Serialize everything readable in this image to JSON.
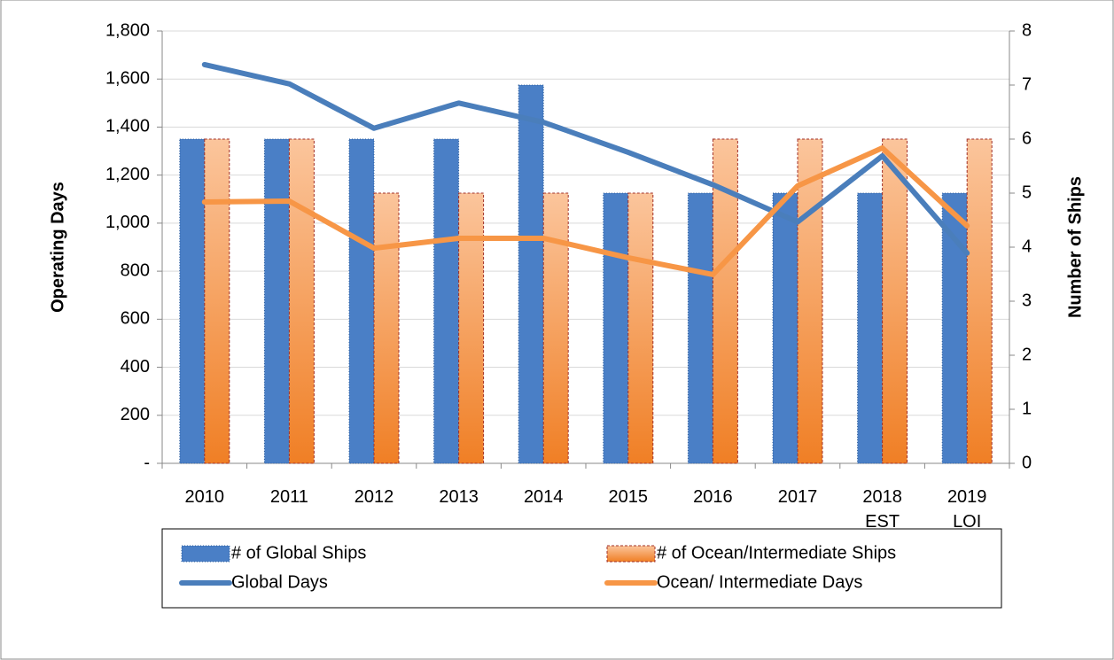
{
  "chart_data": {
    "type": "bar",
    "categories": [
      "2010",
      "2011",
      "2012",
      "2013",
      "2014",
      "2015",
      "2016",
      "2017",
      "2018\nEST",
      "2019\nLOI"
    ],
    "y_label": "Operating Days",
    "y2_label": "Number of Ships",
    "ylim": [
      0,
      1800
    ],
    "yticks": [
      {
        "value": 0,
        "label": "-"
      },
      200,
      400,
      600,
      800,
      {
        "value": 1000,
        "label": "1,000"
      },
      {
        "value": 1200,
        "label": "1,200"
      },
      {
        "value": 1400,
        "label": "1,400"
      },
      {
        "value": 1600,
        "label": "1,600"
      },
      {
        "value": 1800,
        "label": "1,800"
      }
    ],
    "y2lim": [
      0,
      8
    ],
    "y2ticks": [
      0,
      1,
      2,
      3,
      4,
      5,
      6,
      7,
      8
    ],
    "grid": true,
    "legend": "bottom",
    "series": [
      {
        "name": "# of Global Ships",
        "type": "bar",
        "axis": "y2",
        "color": "#4a7fc6",
        "values": [
          6,
          6,
          6,
          6,
          7,
          5,
          5,
          5,
          5,
          5
        ]
      },
      {
        "name": "# of Ocean/Intermediate Ships",
        "type": "bar",
        "axis": "y2",
        "color": "#f58b3d",
        "values": [
          6,
          6,
          5,
          5,
          5,
          5,
          6,
          6,
          6,
          6
        ]
      },
      {
        "name": "Global Days",
        "type": "line",
        "color": "#4a7ebb",
        "values": [
          1660,
          1580,
          1395,
          1500,
          1420,
          1295,
          1160,
          1005,
          1280,
          875
        ]
      },
      {
        "name": "Ocean/ Intermediate Days",
        "type": "line",
        "color": "#f79646",
        "values": [
          1088,
          1092,
          896,
          937,
          937,
          856,
          786,
          1155,
          1313,
          989
        ]
      }
    ]
  }
}
